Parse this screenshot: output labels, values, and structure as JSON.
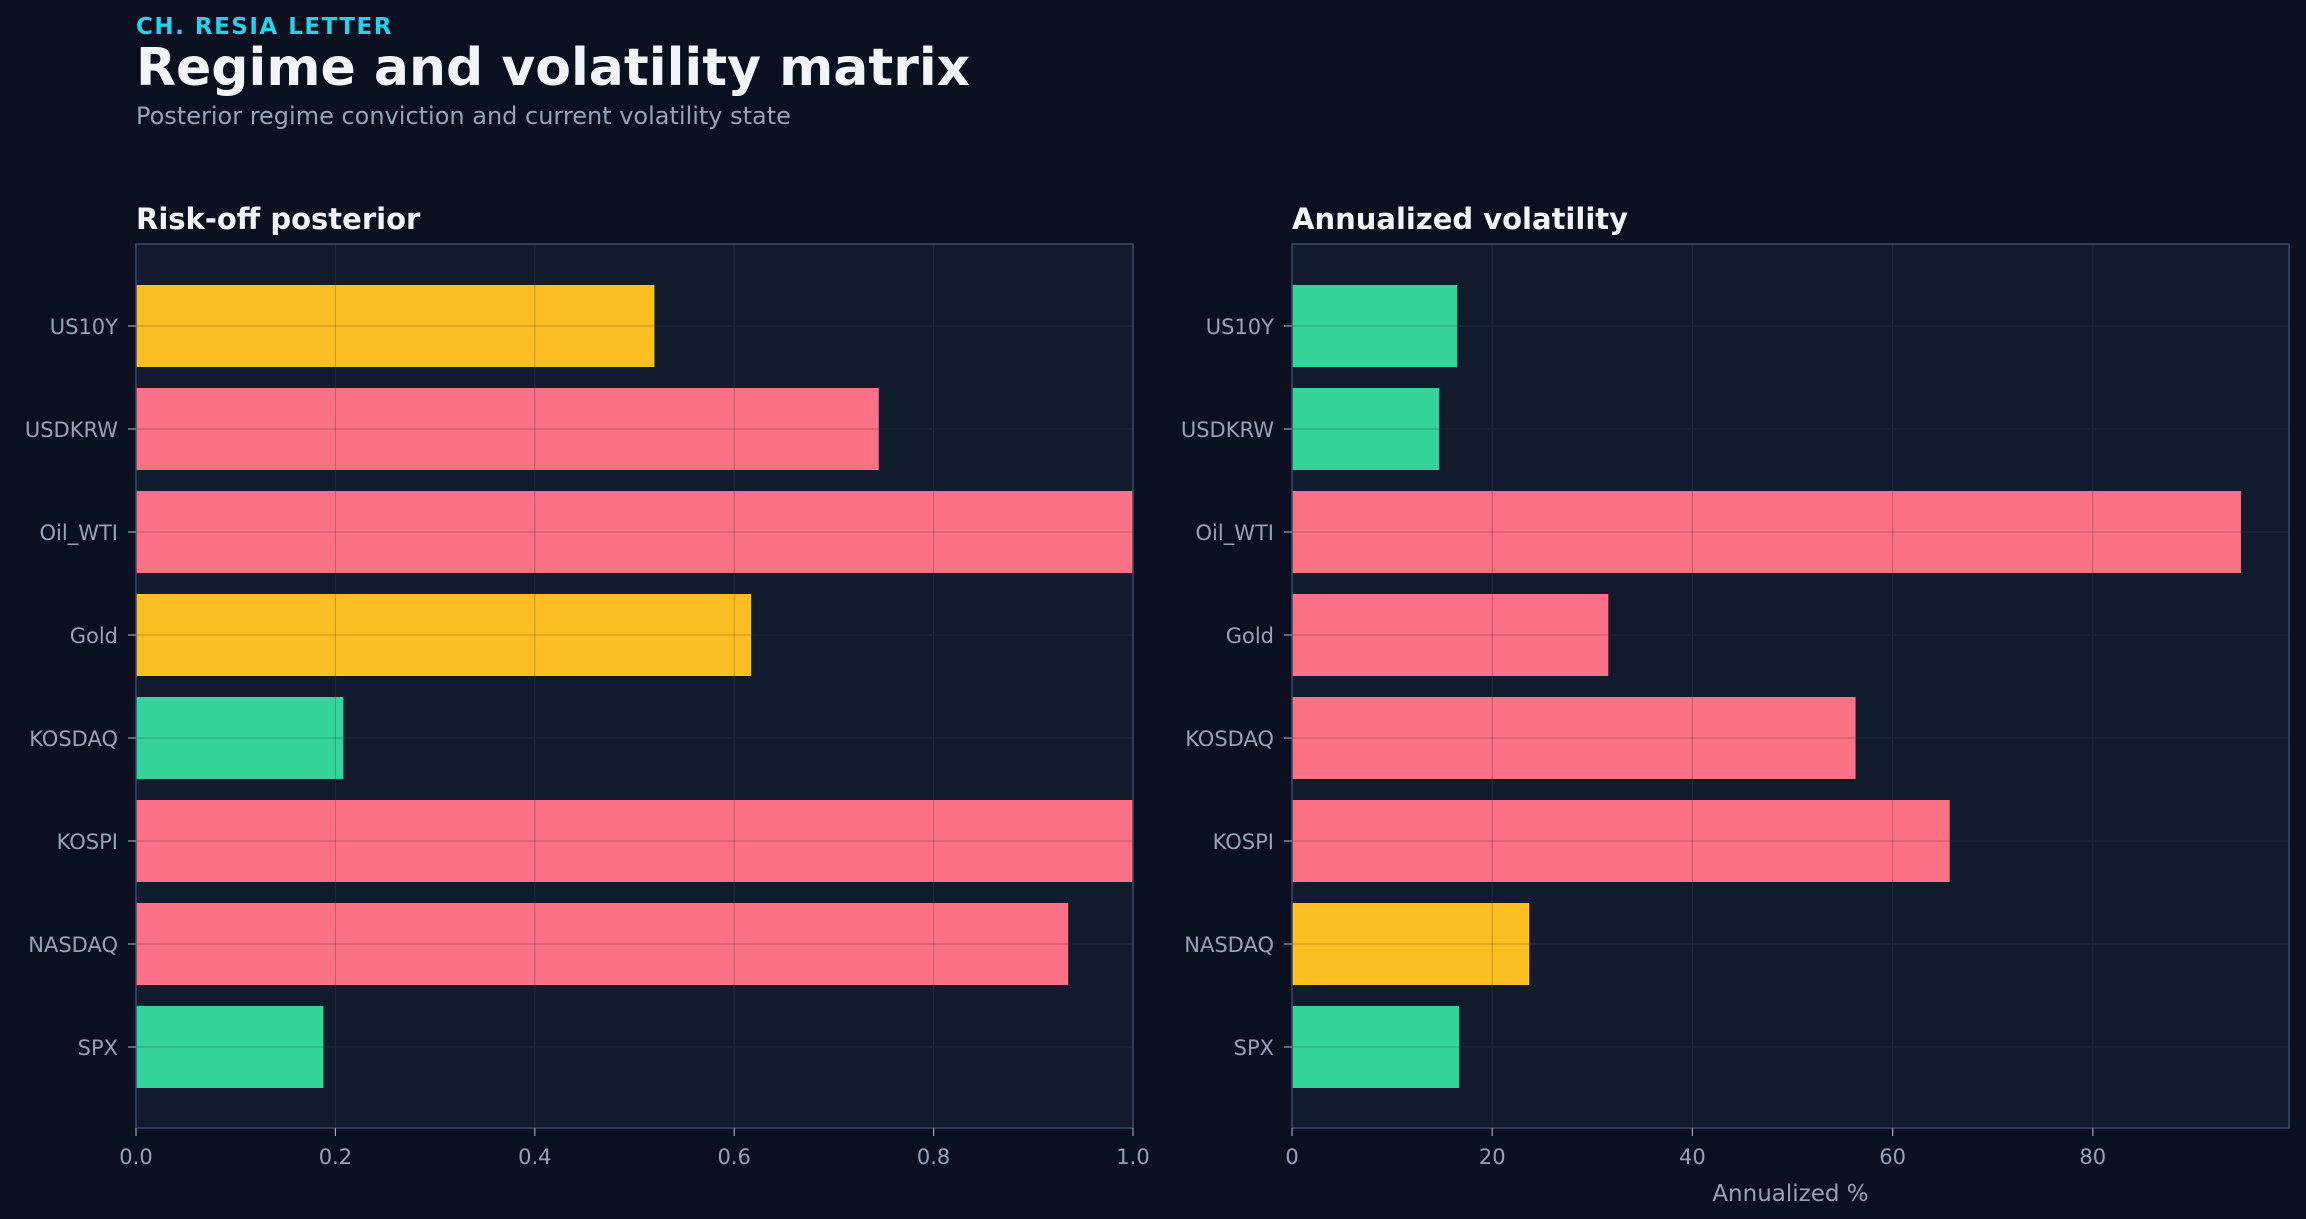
{
  "header": {
    "kicker": "CH. RESIA LETTER",
    "title": "Regime and volatility matrix",
    "subtitle": "Posterior regime conviction and current volatility state"
  },
  "colors": {
    "background": "#0b1020",
    "panel": "#121a2e",
    "grid": "#253149",
    "frame": "#3b4a6b",
    "text": "#f1f5f9",
    "muted": "#94a3b8",
    "accent": "#22d3ee",
    "red": "#fb7185",
    "yellow": "#fbbf24",
    "green": "#34d399"
  },
  "chart_data": [
    {
      "type": "bar",
      "orientation": "horizontal",
      "title": "Risk-off posterior",
      "xlabel": "",
      "categories": [
        "US10Y",
        "USDKRW",
        "Oil_WTI",
        "Gold",
        "KOSDAQ",
        "KOSPI",
        "NASDAQ",
        "SPX"
      ],
      "values": [
        0.52,
        0.745,
        1.0,
        0.617,
        0.208,
        1.0,
        0.935,
        0.188
      ],
      "bar_colors": [
        "yellow",
        "red",
        "red",
        "yellow",
        "green",
        "red",
        "red",
        "green"
      ],
      "xlim": [
        0,
        1.0
      ],
      "xticks": [
        0.0,
        0.2,
        0.4,
        0.6,
        0.8,
        1.0
      ],
      "xtick_labels": [
        "0.0",
        "0.2",
        "0.4",
        "0.6",
        "0.8",
        "1.0"
      ],
      "grid": true
    },
    {
      "type": "bar",
      "orientation": "horizontal",
      "title": "Annualized volatility",
      "xlabel": "Annualized %",
      "categories": [
        "US10Y",
        "USDKRW",
        "Oil_WTI",
        "Gold",
        "KOSDAQ",
        "KOSPI",
        "NASDAQ",
        "SPX"
      ],
      "values": [
        16.5,
        14.7,
        94.8,
        31.6,
        56.3,
        65.7,
        23.7,
        16.7
      ],
      "bar_colors": [
        "green",
        "green",
        "red",
        "red",
        "red",
        "red",
        "yellow",
        "green"
      ],
      "xlim": [
        0,
        99.6
      ],
      "xticks": [
        0,
        20,
        40,
        60,
        80
      ],
      "xtick_labels": [
        "0",
        "20",
        "40",
        "60",
        "80"
      ],
      "grid": true
    }
  ]
}
